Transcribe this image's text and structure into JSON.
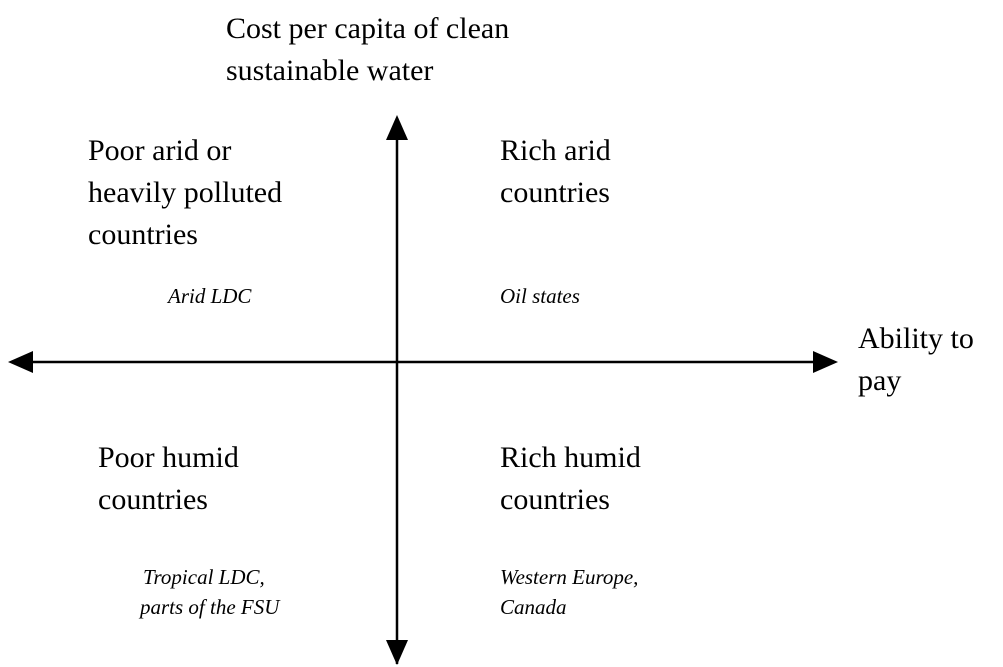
{
  "y_axis_label": [
    "Cost per capita of clean",
    "sustainable water"
  ],
  "x_axis_label": [
    "Ability to",
    "pay"
  ],
  "quadrants": [
    {
      "title": [
        "Poor arid or",
        "heavily polluted",
        "countries"
      ],
      "examples": [
        "Arid LDC"
      ]
    },
    {
      "title": [
        "Rich arid",
        "countries"
      ],
      "examples": [
        "Oil states"
      ]
    },
    {
      "title": [
        "Poor humid",
        "countries"
      ],
      "examples": [
        "Tropical LDC,",
        "parts of the FSU"
      ]
    },
    {
      "title": [
        "Rich humid",
        "countries"
      ],
      "examples": [
        "Western Europe,",
        "Canada"
      ]
    }
  ]
}
